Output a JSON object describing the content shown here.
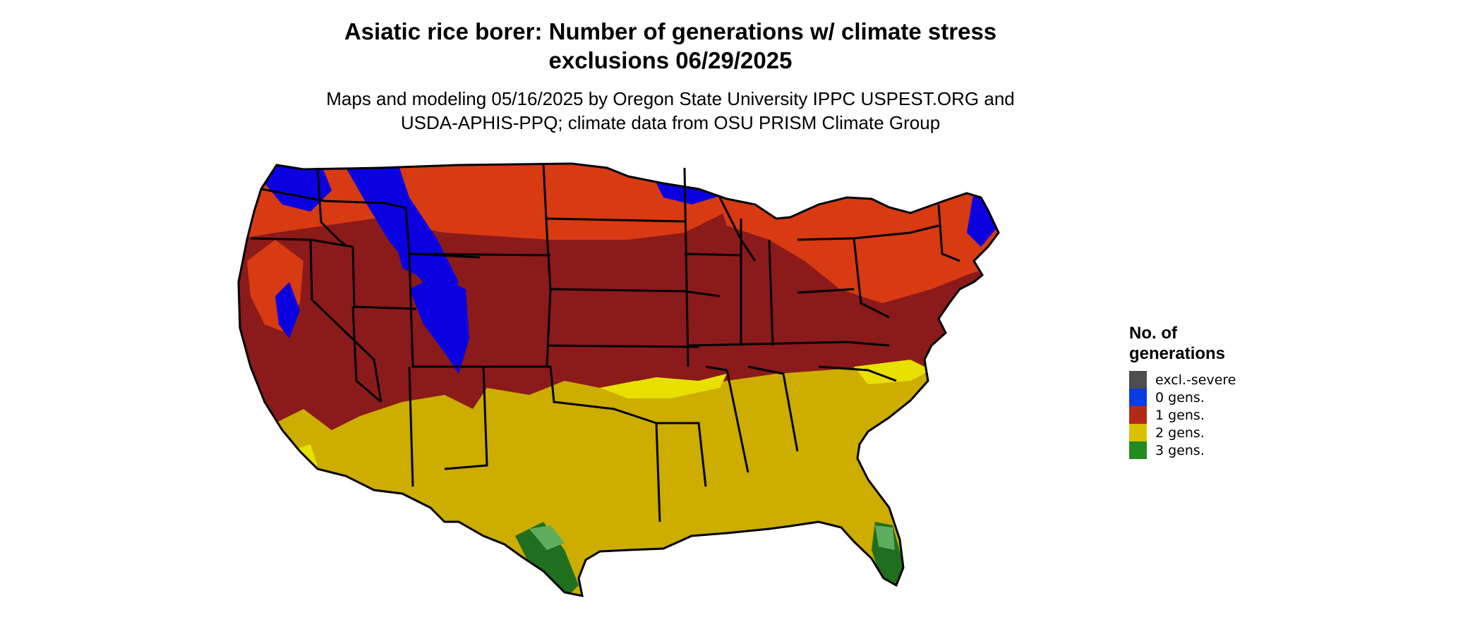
{
  "title_line1": "Asiatic rice borer: Number of generations w/ climate stress",
  "title_line2": "exclusions 06/29/2025",
  "subtitle_line1": "Maps and modeling 05/16/2025 by Oregon State University IPPC USPEST.ORG and",
  "subtitle_line2": "USDA-APHIS-PPQ; climate data from OSU PRISM Climate Group",
  "legend": {
    "title_line1": "No. of",
    "title_line2": "generations",
    "items": [
      {
        "label": "excl.-severe",
        "color": "#4d4d4d"
      },
      {
        "label": "0 gens.",
        "color": "#0a3be0"
      },
      {
        "label": "1 gens.",
        "color": "#b22a16"
      },
      {
        "label": "2 gens.",
        "color": "#d9c100"
      },
      {
        "label": "3 gens.",
        "color": "#228b22"
      }
    ]
  },
  "map_colors": {
    "dark_red": "#8b1a1a",
    "orange_red": "#d83a12",
    "blue": "#0b00e0",
    "yellow": "#ccad00",
    "bright_yellow": "#e8e000",
    "green": "#1f6f1f",
    "light_green": "#5fae5f",
    "border": "#000000"
  }
}
